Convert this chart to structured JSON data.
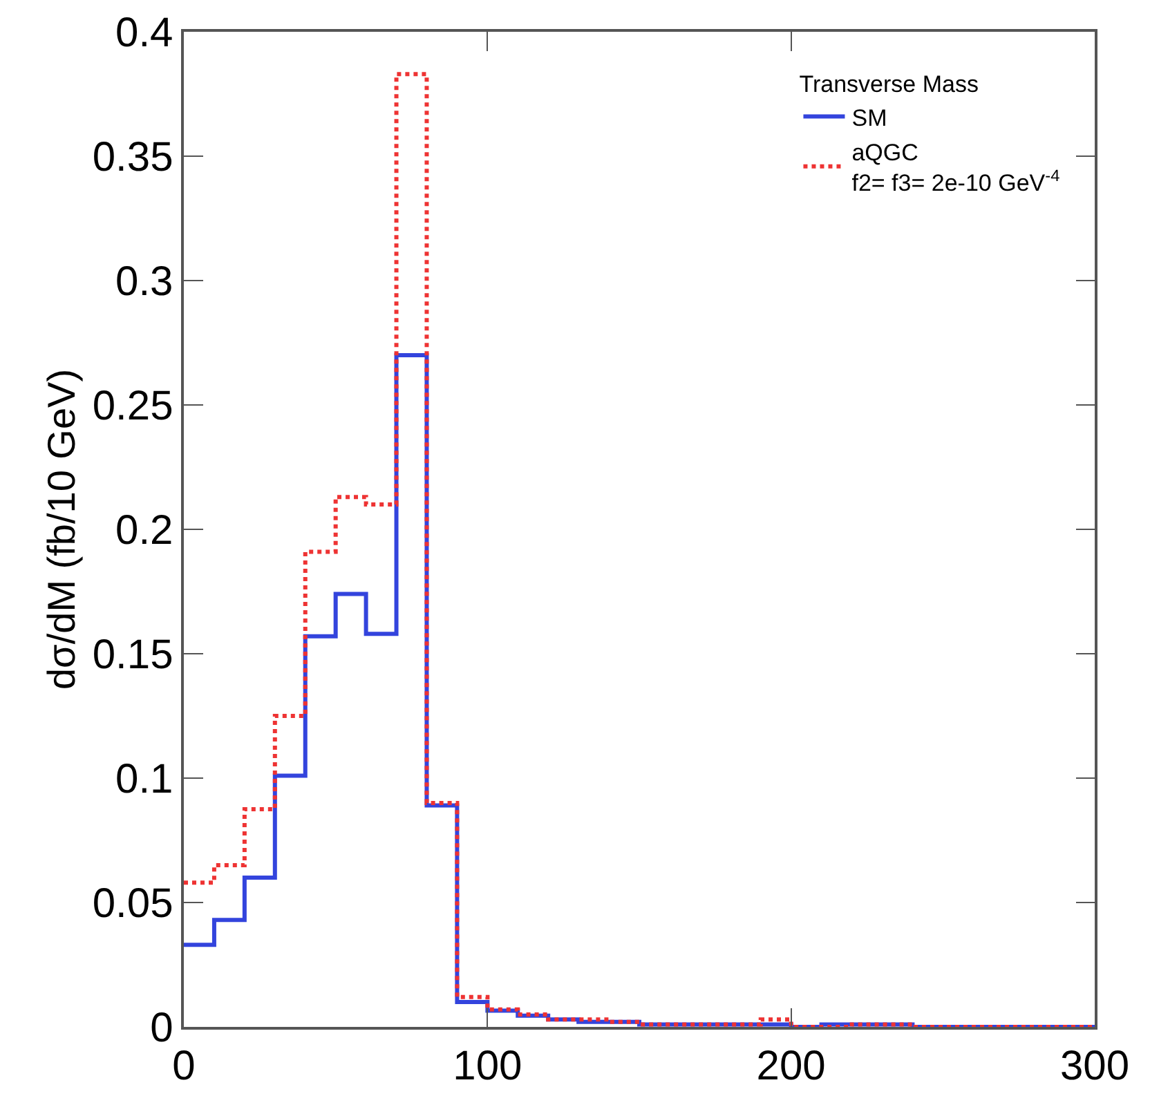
{
  "chart_data": {
    "type": "histogram",
    "ylabel": "dσ/dM (fb/10 GeV)",
    "legend_title": "Transverse Mass",
    "bins": [
      0,
      10,
      20,
      30,
      40,
      50,
      60,
      70,
      80,
      90,
      100,
      110,
      120,
      130,
      140,
      150,
      160,
      170,
      180,
      190,
      200,
      210,
      220,
      230,
      240,
      250,
      260,
      270,
      280,
      290,
      300
    ],
    "series": [
      {
        "name": "SM",
        "color": "#3344dd",
        "line_style": "solid",
        "values": [
          0.033,
          0.043,
          0.06,
          0.101,
          0.157,
          0.174,
          0.158,
          0.27,
          0.089,
          0.01,
          0.0065,
          0.0045,
          0.003,
          0.002,
          0.002,
          0.001,
          0.001,
          0.001,
          0.001,
          0.001,
          0,
          0.001,
          0.001,
          0.001,
          0,
          0,
          0,
          0,
          0,
          0
        ]
      },
      {
        "name": "aQGC\nf2= f3= 2e-10 GeV$^{-4}$",
        "color": "#ee3333",
        "line_style": "dotted",
        "values": [
          0.058,
          0.065,
          0.0875,
          0.125,
          0.191,
          0.213,
          0.21,
          0.383,
          0.09,
          0.012,
          0.007,
          0.005,
          0.003,
          0.003,
          0.002,
          0.001,
          0.001,
          0.001,
          0.001,
          0.003,
          0,
          0,
          0.001,
          0.001,
          0,
          0,
          0,
          0,
          0,
          0
        ]
      }
    ],
    "xlim": [
      0,
      300
    ],
    "xticks": [
      0,
      100,
      200,
      300
    ],
    "ylim": [
      0,
      0.4
    ],
    "yticks": [
      0,
      0.05,
      0.1,
      0.15,
      0.2,
      0.25,
      0.3,
      0.35,
      0.4
    ],
    "grid": false,
    "legend": "top right"
  }
}
